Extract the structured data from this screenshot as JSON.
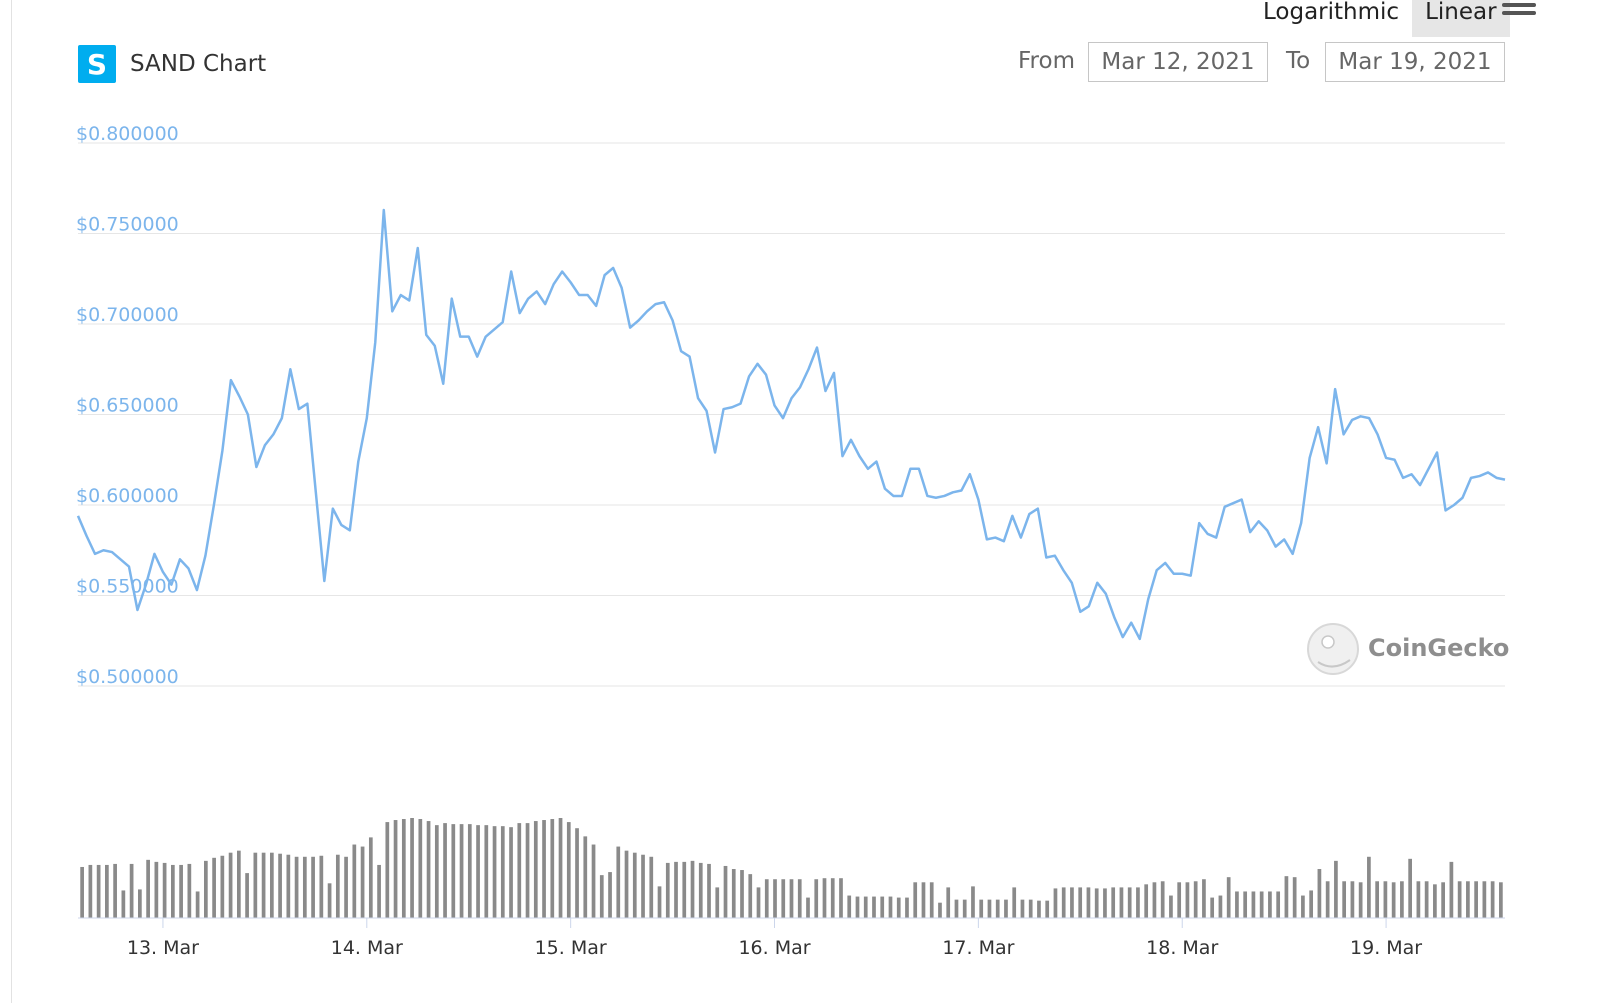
{
  "header": {
    "logo_letter": "S",
    "title": "SAND Chart"
  },
  "scale_toggle": {
    "log_label": "Logarithmic",
    "linear_label": "Linear",
    "active": "Linear"
  },
  "range": {
    "from_label": "From",
    "from_value": "Mar 12, 2021",
    "to_label": "To",
    "to_value": "Mar 19, 2021"
  },
  "watermark": "CoinGecko",
  "colors": {
    "price_line": "#7cb5ec",
    "volume_bar": "#8a8a8a",
    "grid": "#e6e6e6"
  },
  "chart_data": {
    "type": "line",
    "title": "SAND Chart",
    "xlabel": "",
    "ylabel": "",
    "ylim": [
      0.5,
      0.8
    ],
    "y_ticks": [
      "$0.800000",
      "$0.750000",
      "$0.700000",
      "$0.650000",
      "$0.600000",
      "$0.550000",
      "$0.500000"
    ],
    "x_ticks": [
      "13. Mar",
      "14. Mar",
      "15. Mar",
      "16. Mar",
      "17. Mar",
      "18. Mar",
      "19. Mar"
    ],
    "x_range": [
      "Mar 12, 2021 14:00",
      "Mar 19, 2021 17:00"
    ],
    "interval_hours": 1,
    "grid": true,
    "legend": "none",
    "series": [
      {
        "values": [
          0.594,
          0.583,
          0.573,
          0.575,
          0.574,
          0.57,
          0.566,
          0.542,
          0.556,
          0.573,
          0.563,
          0.556,
          0.57,
          0.565,
          0.553,
          0.572,
          0.6,
          0.63,
          0.669,
          0.66,
          0.65,
          0.621,
          0.633,
          0.639,
          0.648,
          0.675,
          0.653,
          0.656,
          0.607,
          0.558,
          0.598,
          0.589,
          0.586,
          0.624,
          0.648,
          0.69,
          0.763,
          0.707,
          0.716,
          0.713,
          0.742,
          0.694,
          0.688,
          0.667,
          0.714,
          0.693,
          0.693,
          0.682,
          0.693,
          0.697,
          0.701,
          0.729,
          0.706,
          0.714,
          0.718,
          0.711,
          0.722,
          0.729,
          0.723,
          0.716,
          0.716,
          0.71,
          0.727,
          0.731,
          0.72,
          0.698,
          0.702,
          0.707,
          0.711,
          0.712,
          0.702,
          0.685,
          0.682,
          0.659,
          0.652,
          0.629,
          0.653,
          0.654,
          0.656,
          0.671,
          0.678,
          0.672,
          0.655,
          0.648,
          0.659,
          0.665,
          0.675,
          0.687,
          0.663,
          0.673,
          0.627,
          0.636,
          0.627,
          0.62,
          0.624,
          0.609,
          0.605,
          0.605,
          0.62,
          0.62,
          0.605,
          0.604,
          0.605,
          0.607,
          0.608,
          0.617,
          0.603,
          0.581,
          0.582,
          0.58,
          0.594,
          0.582,
          0.595,
          0.598,
          0.571,
          0.572,
          0.564,
          0.557,
          0.541,
          0.544,
          0.557,
          0.551,
          0.538,
          0.527,
          0.535,
          0.526,
          0.548,
          0.564,
          0.568,
          0.562,
          0.562,
          0.561,
          0.59,
          0.584,
          0.582,
          0.599,
          0.601,
          0.603,
          0.585,
          0.591,
          0.586,
          0.577,
          0.581,
          0.573,
          0.59,
          0.626,
          0.643,
          0.623,
          0.664,
          0.639,
          0.647,
          0.649,
          0.648,
          0.639,
          0.626,
          0.625,
          0.615,
          0.617,
          0.611,
          0.62,
          0.629,
          0.597,
          0.6,
          0.604,
          0.615,
          0.616,
          0.618,
          0.615,
          0.614
        ]
      },
      {
        "name": "Volume",
        "values": [
          50,
          52,
          52,
          52,
          53,
          27,
          53,
          28,
          57,
          55,
          54,
          52,
          52,
          53,
          26,
          56,
          59,
          61,
          64,
          66,
          44,
          64,
          64,
          64,
          63,
          62,
          60,
          60,
          60,
          61,
          34,
          62,
          60,
          72,
          70,
          79,
          52,
          94,
          96,
          97,
          98,
          97,
          95,
          91,
          93,
          92,
          92,
          92,
          91,
          91,
          90,
          90,
          89,
          93,
          93,
          95,
          96,
          97,
          98,
          94,
          88,
          80,
          72,
          42,
          45,
          70,
          66,
          64,
          62,
          60,
          31,
          54,
          55,
          55,
          56,
          54,
          53,
          30,
          51,
          48,
          47,
          43,
          30,
          38,
          38,
          38,
          38,
          38,
          20,
          38,
          39,
          39,
          39,
          22,
          21,
          21,
          21,
          21,
          21,
          20,
          20,
          35,
          35,
          35,
          15,
          30,
          18,
          18,
          31,
          18,
          18,
          18,
          18,
          30,
          18,
          18,
          17,
          17,
          29,
          30,
          30,
          30,
          30,
          29,
          29,
          30,
          30,
          30,
          30,
          33,
          35,
          36,
          22,
          35,
          35,
          36,
          38,
          20,
          22,
          40,
          26,
          26,
          26,
          26,
          26,
          26,
          41,
          40,
          22,
          27,
          48,
          36,
          56,
          36,
          36,
          35,
          60,
          36,
          36,
          35,
          36,
          58,
          36,
          36,
          33,
          35,
          55,
          36,
          36,
          36,
          36,
          36,
          35
        ]
      }
    ]
  }
}
